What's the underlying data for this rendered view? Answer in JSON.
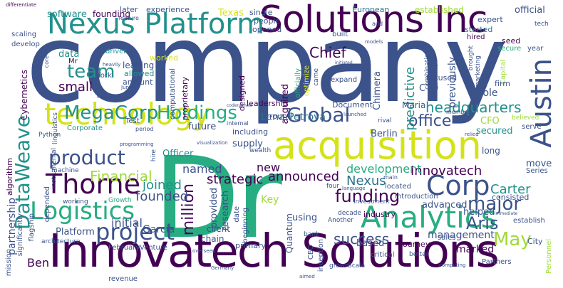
{
  "palette": {
    "navy": "#3b528b",
    "purple": "#440154",
    "teal": "#21918c",
    "blue_teal": "#2c728e",
    "green": "#27ad81",
    "lime": "#a0da39",
    "yellow": "#d4e21a",
    "pale_green": "#8fd744"
  },
  "words": {
    "company": "company",
    "dr": "Dr",
    "innovatech_solutions": "Innovatech Solutions",
    "solutions_inc": "Solutions Inc",
    "nexus_platform": "Nexus Platform",
    "acquisition": "acquisition",
    "technology": "technology",
    "analytics": "Analytics",
    "logistics": "Logistics",
    "thorne": "Thorne",
    "project": "project",
    "product": "product",
    "corp": "Corp",
    "austin": "Austin",
    "dataweave": "DataWeave",
    "global": "Global",
    "megacorp": "MegaCorp",
    "holdings": "Holdings",
    "headquarters": "headquarters",
    "office": "office",
    "financial": "Financial",
    "innovatech": "Innovatech",
    "funding": "funding",
    "major": "major",
    "aris": "Aris",
    "may": "May",
    "carter": "Carter",
    "million": "million",
    "success": "success",
    "team": "team",
    "small": "small",
    "chief": "Chief",
    "predictive": "predictive",
    "lena_petrova": "Lena Petrova",
    "announced": "announced",
    "development": "development",
    "nexus": "Nexus",
    "strategic": "strategic",
    "joined": "joined",
    "founded": "founded",
    "named": "named",
    "initial": "initial",
    "platform": "Platform",
    "garcia": "Garcia",
    "ben": "Ben",
    "texas": "Texas",
    "software": "software",
    "founding": "founding",
    "later": "later",
    "experience": "experience",
    "european": "European",
    "established": "established",
    "official": "official",
    "expert": "expert",
    "started": "started",
    "hired": "hired",
    "seed": "seed",
    "secure": "secure",
    "year": "year",
    "tech": "tech",
    "partnership": "partnership",
    "cybernetics": "Cybernetics",
    "develop": "develop",
    "scaling": "scaling",
    "differentiate": "differentiate",
    "mr": "Mr",
    "data": "data",
    "driver": "driver",
    "leading": "leading",
    "allowed": "allowed",
    "amount": "amount",
    "worked": "worked",
    "york": "York",
    "heavily": "heavily",
    "feature": "feature",
    "people": "people",
    "opened": "opened",
    "single": "single",
    "built": "built",
    "add": "add",
    "leadership": "leadership",
    "designed": "designed",
    "proprietary": "proprietary",
    "computational": "computational",
    "acquired": "acquired",
    "chimera": "Chimera",
    "officially": "officially",
    "optimize": "optimize",
    "came": "came",
    "expand": "expand",
    "focused": "focused",
    "cto": "CTO",
    "previously": "previously",
    "capital": "Capital",
    "brought": "brought",
    "marketing": "marketing",
    "firm": "firm",
    "role": "role",
    "cfo": "CFO",
    "maria": "Maria",
    "berlin": "Berlin",
    "secured": "secured",
    "document": "Document",
    "round": "round",
    "rival": "rival",
    "member": "member",
    "serve": "serve",
    "believed": "believed",
    "acumen": "acumen",
    "combination": "combination",
    "sales": "sales",
    "future": "future",
    "supply": "supply",
    "including": "including",
    "wealth": "wealth",
    "officer": "Officer",
    "corporate": "Corporate",
    "test": "Test",
    "period": "period",
    "python": "Python",
    "linguistics": "linguistics",
    "core": "core",
    "algorithm": "algorithm",
    "machine": "machine",
    "instrumental": "instrumental",
    "depended": "depended",
    "working": "working",
    "growth": "Growth",
    "flagship": "flagship",
    "architecture": "architecture",
    "february": "February",
    "venture": "Venture",
    "mission": "mission",
    "significantly": "significantly",
    "provided": "provided",
    "research": "research",
    "client": "client",
    "chain": "chain",
    "primary": "primary",
    "date": "date",
    "beginning": "beginning",
    "quantum": "Quantum",
    "using": "using",
    "key": "Key",
    "based": "based",
    "ceo": "CEO",
    "inception": "inception",
    "grown": "grown",
    "scala": "Scala",
    "critical": "critical",
    "bank": "bank",
    "four": "four",
    "located": "located",
    "introduction": "Introduction",
    "consisted": "consisted",
    "industry": "industry",
    "investment": "investment",
    "decade": "decade",
    "another": "Another",
    "journey": "journey",
    "advanced": "advanced",
    "helped": "helped",
    "management": "management",
    "marked": "marked",
    "partners": "Partners",
    "better": "better",
    "city": "City",
    "personnel": "Personnel",
    "long": "long",
    "move": "move",
    "series": "Series",
    "establish": "establish",
    "computing": "computing",
    "language": "language",
    "main": "main",
    "launched": "launched",
    "internal": "internal",
    "hire": "hire",
    "new": "new",
    "revenue": "revenue",
    "programming": "programming",
    "visualization": "visualization",
    "overseen": "overseen",
    "germany": "Germany",
    "june": "June",
    "competitors": "competitors",
    "codenamed": "codenamed",
    "initiated": "initiated",
    "models": "models",
    "relied": "relied",
    "immediate": "immediate",
    "aimed": "aimed"
  }
}
